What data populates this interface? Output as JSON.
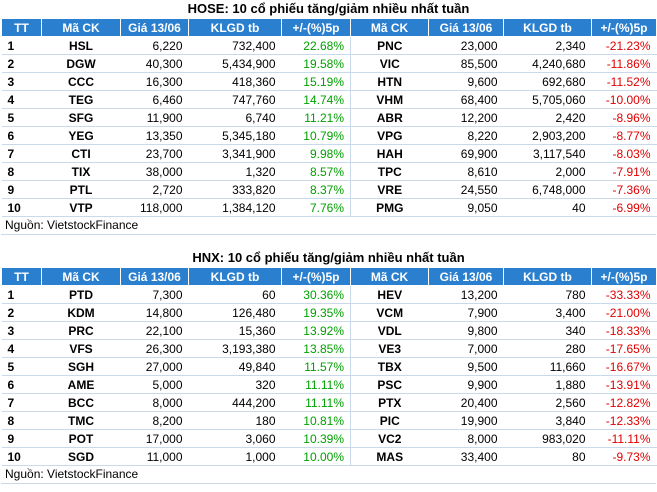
{
  "hose": {
    "title": "HOSE: 10 cổ phiếu tăng/giảm nhiều nhất tuần",
    "headers": [
      "TT",
      "Mã CK",
      "Giá 13/06",
      "KLGD tb",
      "+/-(%)5p",
      "Mã CK",
      "Giá 13/06",
      "KLGD tb",
      "+/-(%)5p"
    ],
    "rows": [
      {
        "tt": "1",
        "up_code": "HSL",
        "up_price": "6,220",
        "up_vol": "732,400",
        "up_pct": "22.68%",
        "down_code": "PNC",
        "down_price": "23,000",
        "down_vol": "2,340",
        "down_pct": "-21.23%"
      },
      {
        "tt": "2",
        "up_code": "DGW",
        "up_price": "40,300",
        "up_vol": "5,434,900",
        "up_pct": "19.58%",
        "down_code": "VIC",
        "down_price": "85,500",
        "down_vol": "4,240,680",
        "down_pct": "-11.86%"
      },
      {
        "tt": "3",
        "up_code": "CCC",
        "up_price": "16,300",
        "up_vol": "418,360",
        "up_pct": "15.19%",
        "down_code": "HTN",
        "down_price": "9,600",
        "down_vol": "692,680",
        "down_pct": "-11.52%"
      },
      {
        "tt": "4",
        "up_code": "TEG",
        "up_price": "6,460",
        "up_vol": "747,760",
        "up_pct": "14.74%",
        "down_code": "VHM",
        "down_price": "68,400",
        "down_vol": "5,705,060",
        "down_pct": "-10.00%"
      },
      {
        "tt": "5",
        "up_code": "SFG",
        "up_price": "11,900",
        "up_vol": "6,740",
        "up_pct": "11.21%",
        "down_code": "ABR",
        "down_price": "12,200",
        "down_vol": "2,420",
        "down_pct": "-8.96%"
      },
      {
        "tt": "6",
        "up_code": "YEG",
        "up_price": "13,350",
        "up_vol": "5,345,180",
        "up_pct": "10.79%",
        "down_code": "VPG",
        "down_price": "8,220",
        "down_vol": "2,903,200",
        "down_pct": "-8.77%"
      },
      {
        "tt": "7",
        "up_code": "CTI",
        "up_price": "23,700",
        "up_vol": "3,341,900",
        "up_pct": "9.98%",
        "down_code": "HAH",
        "down_price": "69,900",
        "down_vol": "3,117,540",
        "down_pct": "-8.03%"
      },
      {
        "tt": "8",
        "up_code": "TIX",
        "up_price": "38,000",
        "up_vol": "1,320",
        "up_pct": "8.57%",
        "down_code": "TPC",
        "down_price": "8,610",
        "down_vol": "2,000",
        "down_pct": "-7.91%"
      },
      {
        "tt": "9",
        "up_code": "PTL",
        "up_price": "2,720",
        "up_vol": "333,820",
        "up_pct": "8.37%",
        "down_code": "VRE",
        "down_price": "24,550",
        "down_vol": "6,748,000",
        "down_pct": "-7.36%"
      },
      {
        "tt": "10",
        "up_code": "VTP",
        "up_price": "118,000",
        "up_vol": "1,384,120",
        "up_pct": "7.76%",
        "down_code": "PMG",
        "down_price": "9,050",
        "down_vol": "40",
        "down_pct": "-6.99%"
      }
    ],
    "source": "Nguồn: VietstockFinance"
  },
  "hnx": {
    "title": "HNX: 10 cổ phiếu tăng/giảm nhiều nhất tuần",
    "headers": [
      "TT",
      "Mã CK",
      "Giá 13/06",
      "KLGD tb",
      "+/-(%)5p",
      "Mã CK",
      "Giá 13/06",
      "KLGD tb",
      "+/-(%)5p"
    ],
    "rows": [
      {
        "tt": "1",
        "up_code": "PTD",
        "up_price": "7,300",
        "up_vol": "60",
        "up_pct": "30.36%",
        "down_code": "HEV",
        "down_price": "13,200",
        "down_vol": "780",
        "down_pct": "-33.33%"
      },
      {
        "tt": "2",
        "up_code": "KDM",
        "up_price": "14,800",
        "up_vol": "126,480",
        "up_pct": "19.35%",
        "down_code": "VCM",
        "down_price": "7,900",
        "down_vol": "3,400",
        "down_pct": "-21.00%"
      },
      {
        "tt": "3",
        "up_code": "PRC",
        "up_price": "22,100",
        "up_vol": "15,360",
        "up_pct": "13.92%",
        "down_code": "VDL",
        "down_price": "9,800",
        "down_vol": "340",
        "down_pct": "-18.33%"
      },
      {
        "tt": "4",
        "up_code": "VFS",
        "up_price": "26,300",
        "up_vol": "3,193,380",
        "up_pct": "13.85%",
        "down_code": "VE3",
        "down_price": "7,000",
        "down_vol": "280",
        "down_pct": "-17.65%"
      },
      {
        "tt": "5",
        "up_code": "SGH",
        "up_price": "27,000",
        "up_vol": "49,840",
        "up_pct": "11.57%",
        "down_code": "TBX",
        "down_price": "9,500",
        "down_vol": "11,660",
        "down_pct": "-16.67%"
      },
      {
        "tt": "6",
        "up_code": "AME",
        "up_price": "5,000",
        "up_vol": "320",
        "up_pct": "11.11%",
        "down_code": "PSC",
        "down_price": "9,900",
        "down_vol": "1,880",
        "down_pct": "-13.91%"
      },
      {
        "tt": "7",
        "up_code": "BCC",
        "up_price": "8,000",
        "up_vol": "444,200",
        "up_pct": "11.11%",
        "down_code": "PTX",
        "down_price": "20,400",
        "down_vol": "2,560",
        "down_pct": "-12.82%"
      },
      {
        "tt": "8",
        "up_code": "TMC",
        "up_price": "8,200",
        "up_vol": "180",
        "up_pct": "10.81%",
        "down_code": "PIC",
        "down_price": "19,900",
        "down_vol": "3,840",
        "down_pct": "-12.33%"
      },
      {
        "tt": "9",
        "up_code": "POT",
        "up_price": "17,000",
        "up_vol": "3,060",
        "up_pct": "10.39%",
        "down_code": "VC2",
        "down_price": "8,000",
        "down_vol": "983,020",
        "down_pct": "-11.11%"
      },
      {
        "tt": "10",
        "up_code": "SGD",
        "up_price": "11,000",
        "up_vol": "1,000",
        "up_pct": "10.00%",
        "down_code": "MAS",
        "down_price": "33,400",
        "down_vol": "80",
        "down_pct": "-9.73%"
      }
    ],
    "source": "Nguồn: VietstockFinance"
  }
}
